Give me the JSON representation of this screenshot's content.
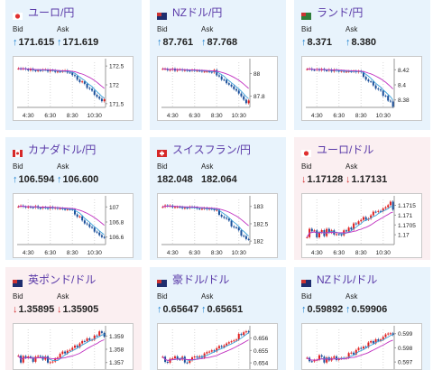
{
  "tiles": [
    {
      "name": "ユーロ/円",
      "flag": "eu-jp-flag",
      "bid_label": "Bid",
      "ask_label": "Ask",
      "bid": "171.615",
      "ask": "171.619",
      "direction": "up",
      "bg": "blue",
      "y_ticks": [
        "172.5",
        "172",
        "171.5"
      ],
      "x_ticks": [
        "4:30",
        "6:30",
        "8:30",
        "10:30"
      ]
    },
    {
      "name": "NZドル/円",
      "flag": "nz-jp-flag",
      "bid_label": "Bid",
      "ask_label": "Ask",
      "bid": "87.761",
      "ask": "87.768",
      "direction": "up",
      "bg": "blue",
      "y_ticks": [
        "88",
        "87.8"
      ],
      "x_ticks": [
        "4:30",
        "6:30",
        "8:30",
        "10:30"
      ]
    },
    {
      "name": "ランド/円",
      "flag": "za-jp-flag",
      "bid_label": "Bid",
      "ask_label": "Ask",
      "bid": "8.371",
      "ask": "8.380",
      "direction": "up",
      "bg": "blue",
      "y_ticks": [
        "8.42",
        "8.4",
        "8.38"
      ],
      "x_ticks": [
        "4:30",
        "6:30",
        "8:30",
        "10:30"
      ]
    },
    {
      "name": "カナダドル/円",
      "flag": "ca-jp-flag",
      "bid_label": "Bid",
      "ask_label": "Ask",
      "bid": "106.594",
      "ask": "106.600",
      "direction": "up",
      "bg": "blue",
      "y_ticks": [
        "107",
        "106.8",
        "106.6"
      ],
      "x_ticks": [
        "4:30",
        "6:30",
        "8:30",
        "10:30"
      ]
    },
    {
      "name": "スイスフラン/円",
      "flag": "ch-jp-flag",
      "bid_label": "Bid",
      "ask_label": "Ask",
      "bid": "182.048",
      "ask": "182.064",
      "direction": "none",
      "bg": "blue",
      "y_ticks": [
        "183",
        "182.5",
        "182"
      ],
      "x_ticks": [
        "4:30",
        "6:30",
        "8:30",
        "10:30"
      ]
    },
    {
      "name": "ユーロ/ドル",
      "flag": "eu-us-flag",
      "bid_label": "Bid",
      "ask_label": "Ask",
      "bid": "1.17128",
      "ask": "1.17131",
      "direction": "down",
      "bg": "pink",
      "y_ticks": [
        "1.1715",
        "1.171",
        "1.1705",
        "1.17"
      ],
      "x_ticks": [
        "4:30",
        "6:30",
        "8:30",
        "10:30"
      ]
    },
    {
      "name": "英ポンド/ドル",
      "flag": "gb-us-flag",
      "bid_label": "Bid",
      "ask_label": "Ask",
      "bid": "1.35895",
      "ask": "1.35905",
      "direction": "down",
      "bg": "pink",
      "y_ticks": [
        "1.359",
        "1.358",
        "1.357"
      ],
      "x_ticks": []
    },
    {
      "name": "豪ドル/ドル",
      "flag": "au-us-flag",
      "bid_label": "Bid",
      "ask_label": "Ask",
      "bid": "0.65647",
      "ask": "0.65651",
      "direction": "up",
      "bg": "blue",
      "y_ticks": [
        "0.656",
        "0.655",
        "0.654"
      ],
      "x_ticks": []
    },
    {
      "name": "NZドル/ドル",
      "flag": "nz-us-flag",
      "bid_label": "Bid",
      "ask_label": "Ask",
      "bid": "0.59892",
      "ask": "0.59906",
      "direction": "up",
      "bg": "blue",
      "y_ticks": [
        "0.599",
        "0.598",
        "0.597"
      ],
      "x_ticks": []
    }
  ],
  "colors": {
    "up_arrow": "#1a7fcf",
    "down_arrow": "#d23030",
    "candle_up": "#e02020",
    "candle_down": "#1a4f9a",
    "ma_short": "#3aa0d8",
    "ma_long": "#c030c0"
  },
  "chart_data": [
    {
      "type": "line",
      "title": "ユーロ/円",
      "x": [
        "4:30",
        "6:30",
        "8:30",
        "10:30"
      ],
      "trend": "down",
      "ylim": [
        171.4,
        172.6
      ],
      "last": 171.615
    },
    {
      "type": "line",
      "title": "NZドル/円",
      "x": [
        "4:30",
        "6:30",
        "8:30",
        "10:30"
      ],
      "trend": "down",
      "ylim": [
        87.7,
        88.1
      ],
      "last": 87.761
    },
    {
      "type": "line",
      "title": "ランド/円",
      "x": [
        "4:30",
        "6:30",
        "8:30",
        "10:30"
      ],
      "trend": "down",
      "ylim": [
        8.37,
        8.43
      ],
      "last": 8.371
    },
    {
      "type": "line",
      "title": "カナダドル/円",
      "x": [
        "4:30",
        "6:30",
        "8:30",
        "10:30"
      ],
      "trend": "down",
      "ylim": [
        106.5,
        107.1
      ],
      "last": 106.594
    },
    {
      "type": "line",
      "title": "スイスフラン/円",
      "x": [
        "4:30",
        "6:30",
        "8:30",
        "10:30"
      ],
      "trend": "down",
      "ylim": [
        181.9,
        183.2
      ],
      "last": 182.048
    },
    {
      "type": "line",
      "title": "ユーロ/ドル",
      "x": [
        "4:30",
        "6:30",
        "8:30",
        "10:30"
      ],
      "trend": "up",
      "ylim": [
        1.1695,
        1.1718
      ],
      "last": 1.17128
    },
    {
      "type": "line",
      "title": "英ポンド/ドル",
      "x": [],
      "trend": "up",
      "ylim": [
        1.3565,
        1.3595
      ],
      "last": 1.35895
    },
    {
      "type": "line",
      "title": "豪ドル/ドル",
      "x": [],
      "trend": "up",
      "ylim": [
        0.6535,
        0.6567
      ],
      "last": 0.65647
    },
    {
      "type": "line",
      "title": "NZドル/ドル",
      "x": [],
      "trend": "up",
      "ylim": [
        0.5965,
        0.5993
      ],
      "last": 0.59892
    }
  ]
}
